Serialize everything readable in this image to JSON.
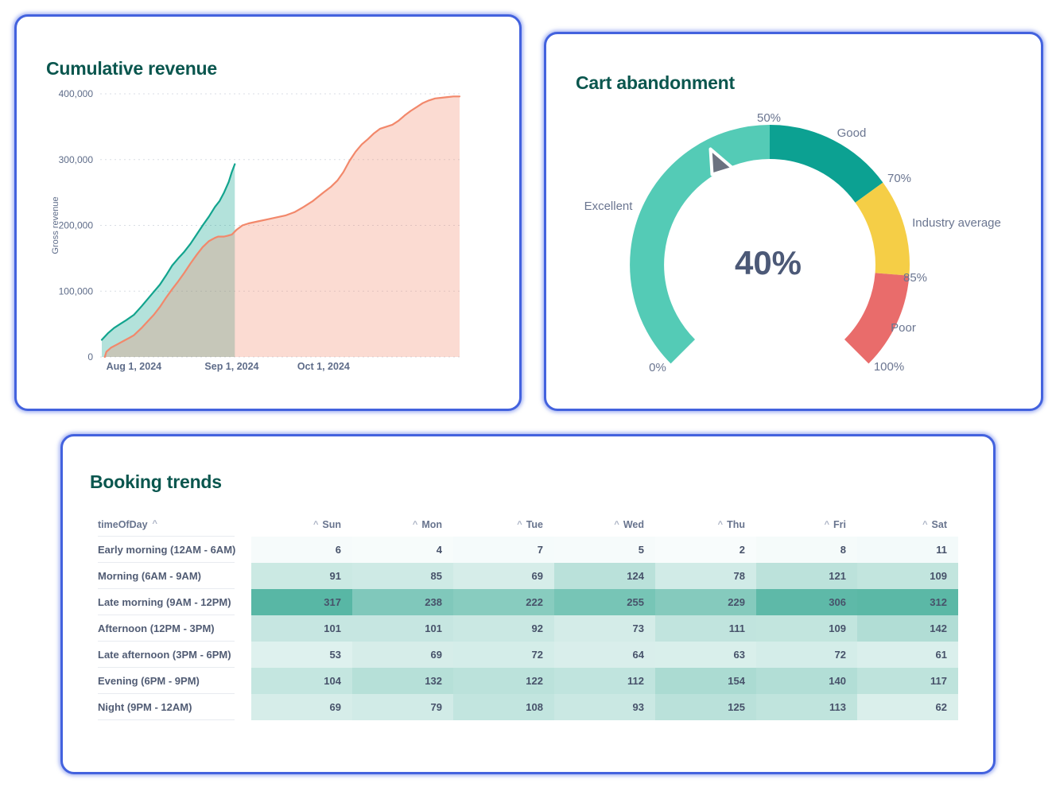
{
  "cards": {
    "revenue": {
      "title": "Cumulative revenue"
    },
    "gauge": {
      "title": "Cart abandonment"
    },
    "booking": {
      "title": "Booking trends"
    }
  },
  "colors": {
    "card_border": "#4362DE",
    "title_text": "#0A564E",
    "axis_text": "#5E6C89",
    "gauge_label_text": "#6A7590",
    "gauge_value_text": "#4C5977",
    "needle": "#6B7280",
    "series_teal": "#12A48E",
    "series_salmon": "#F2886B"
  },
  "chart_data": [
    {
      "type": "area",
      "title": "Cumulative revenue",
      "ylabel": "Gross revenue",
      "ylim": [
        0,
        400000
      ],
      "grid": "dashed-horizontal",
      "y_ticks": [
        {
          "value": 0,
          "label": "0"
        },
        {
          "value": 100000,
          "label": "100,000"
        },
        {
          "value": 200000,
          "label": "200,000"
        },
        {
          "value": 300000,
          "label": "300,000"
        },
        {
          "value": 400000,
          "label": "400,000"
        }
      ],
      "x_range_days": [
        0,
        117
      ],
      "x_ticks": [
        {
          "day": 10.5,
          "label": "Aug 1, 2024"
        },
        {
          "day": 42.5,
          "label": "Sep 1, 2024"
        },
        {
          "day": 72.5,
          "label": "Oct 1, 2024"
        }
      ],
      "series": [
        {
          "color": "#12A48E",
          "fill_opacity": 0.32,
          "points": [
            [
              0,
              26000
            ],
            [
              2,
              36000
            ],
            [
              4,
              44000
            ],
            [
              6,
              50000
            ],
            [
              8,
              56000
            ],
            [
              10.5,
              64000
            ],
            [
              13,
              77000
            ],
            [
              15,
              88000
            ],
            [
              17,
              99000
            ],
            [
              19,
              110000
            ],
            [
              21,
              124000
            ],
            [
              23,
              139000
            ],
            [
              25,
              150000
            ],
            [
              27,
              160000
            ],
            [
              29,
              172000
            ],
            [
              31,
              186000
            ],
            [
              33,
              200000
            ],
            [
              35,
              213000
            ],
            [
              37,
              228000
            ],
            [
              38.5,
              237000
            ],
            [
              40,
              250000
            ],
            [
              41.5,
              266000
            ],
            [
              42.5,
              281000
            ],
            [
              43.5,
              293000
            ]
          ]
        },
        {
          "color": "#F2886B",
          "fill_opacity": 0.3,
          "points": [
            [
              1,
              0
            ],
            [
              1.5,
              8000
            ],
            [
              3,
              14000
            ],
            [
              5,
              19000
            ],
            [
              7,
              24000
            ],
            [
              9,
              29000
            ],
            [
              10.5,
              33000
            ],
            [
              13,
              44000
            ],
            [
              15,
              54000
            ],
            [
              17,
              64000
            ],
            [
              19,
              76000
            ],
            [
              21,
              90000
            ],
            [
              23,
              103000
            ],
            [
              25,
              115000
            ],
            [
              27,
              128000
            ],
            [
              29,
              142000
            ],
            [
              31,
              155000
            ],
            [
              33,
              167000
            ],
            [
              35,
              176000
            ],
            [
              37,
              181000
            ],
            [
              38,
              183000
            ],
            [
              40,
              183000
            ],
            [
              41,
              184000
            ],
            [
              42.5,
              186000
            ],
            [
              44,
              193000
            ],
            [
              46,
              200000
            ],
            [
              48,
              203000
            ],
            [
              51,
              206000
            ],
            [
              54,
              209000
            ],
            [
              57,
              212000
            ],
            [
              60,
              215000
            ],
            [
              63,
              220000
            ],
            [
              66,
              228000
            ],
            [
              69,
              237000
            ],
            [
              72.5,
              250000
            ],
            [
              75,
              259000
            ],
            [
              77,
              268000
            ],
            [
              79,
              281000
            ],
            [
              81,
              298000
            ],
            [
              83,
              312000
            ],
            [
              85,
              323000
            ],
            [
              87,
              331000
            ],
            [
              89,
              340000
            ],
            [
              91,
              347000
            ],
            [
              93,
              350000
            ],
            [
              95,
              353000
            ],
            [
              97,
              359000
            ],
            [
              99,
              367000
            ],
            [
              101,
              374000
            ],
            [
              103,
              380000
            ],
            [
              105,
              386000
            ],
            [
              107,
              390000
            ],
            [
              109,
              393000
            ],
            [
              111,
              394000
            ],
            [
              113,
              395000
            ],
            [
              115,
              396000
            ],
            [
              117,
              396000
            ]
          ]
        }
      ]
    },
    {
      "type": "gauge",
      "title": "Cart abandonment",
      "value_pct": 40,
      "value_label": "40%",
      "min_pct": 0,
      "max_pct": 100,
      "segments": [
        {
          "label": "Excellent",
          "from_pct": 0,
          "to_pct": 50,
          "color": "#54CBB6"
        },
        {
          "label": "Good",
          "from_pct": 50,
          "to_pct": 70,
          "color": "#0CA192"
        },
        {
          "label": "Industry average",
          "from_pct": 70,
          "to_pct": 85,
          "color": "#F5CE46"
        },
        {
          "label": "Poor",
          "from_pct": 85,
          "to_pct": 100,
          "color": "#E96C6B"
        }
      ],
      "ticks": [
        {
          "pct": 0,
          "label": "0%"
        },
        {
          "pct": 50,
          "label": "50%"
        },
        {
          "pct": 70,
          "label": "70%"
        },
        {
          "pct": 85,
          "label": "85%"
        },
        {
          "pct": 100,
          "label": "100%"
        }
      ]
    },
    {
      "type": "heatmap",
      "title": "Booking trends",
      "row_header": "timeOfDay",
      "sort_caret": "^",
      "columns": [
        "Sun",
        "Mon",
        "Tue",
        "Wed",
        "Thu",
        "Fri",
        "Sat"
      ],
      "rows": [
        {
          "label": "Early morning (12AM - 6AM)",
          "values": [
            6,
            4,
            7,
            5,
            2,
            8,
            11
          ]
        },
        {
          "label": "Morning (6AM - 9AM)",
          "values": [
            91,
            85,
            69,
            124,
            78,
            121,
            109
          ]
        },
        {
          "label": "Late morning (9AM - 12PM)",
          "values": [
            317,
            238,
            222,
            255,
            229,
            306,
            312
          ]
        },
        {
          "label": "Afternoon (12PM - 3PM)",
          "values": [
            101,
            101,
            92,
            73,
            111,
            109,
            142
          ]
        },
        {
          "label": "Late afternoon (3PM - 6PM)",
          "values": [
            53,
            69,
            72,
            64,
            63,
            72,
            61
          ]
        },
        {
          "label": "Evening (6PM - 9PM)",
          "values": [
            104,
            132,
            122,
            112,
            154,
            140,
            117
          ]
        },
        {
          "label": "Night (9PM - 12AM)",
          "values": [
            69,
            79,
            108,
            93,
            125,
            113,
            62
          ]
        }
      ],
      "color_scale": {
        "min": 2,
        "max": 317,
        "min_color": "#F8FCFC",
        "max_color": "#58B7A5"
      }
    }
  ]
}
